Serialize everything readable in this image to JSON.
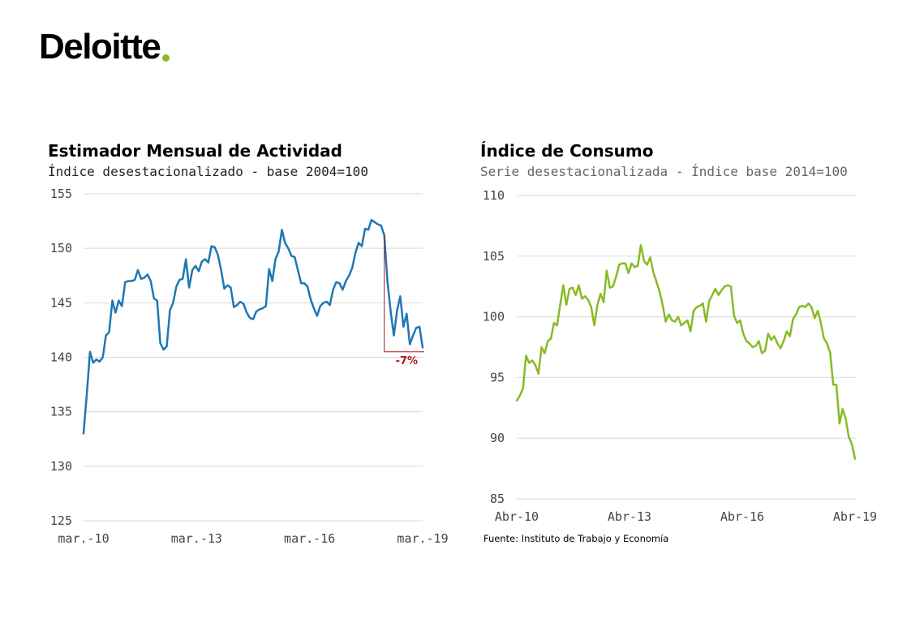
{
  "logo": {
    "text": "Deloitte",
    "dot_color": "#86bc25"
  },
  "source": "Fuente: Instituto de Trabajo y Economía",
  "chart_data": [
    {
      "type": "line",
      "title": "Estimador Mensual de Actividad",
      "subtitle": "Índice desestacionalizado - base 2004=100",
      "ylim": [
        125,
        155
      ],
      "yticks": [
        125,
        130,
        135,
        140,
        145,
        150,
        155
      ],
      "xticks": [
        "mar.-10",
        "mar.-13",
        "mar.-16",
        "mar.-19"
      ],
      "grid": true,
      "color": "#1f77b4",
      "series": [
        {
          "values": [
            133.0,
            136.5,
            140.5,
            139.5,
            139.8,
            139.6,
            140.0,
            142.0,
            142.3,
            145.2,
            144.1,
            145.2,
            144.7,
            146.9,
            147.0,
            147.0,
            147.1,
            148.0,
            147.2,
            147.3,
            147.6,
            147.0,
            145.4,
            145.2,
            141.3,
            140.7,
            141.0,
            144.3,
            145.0,
            146.5,
            147.1,
            147.2,
            149.0,
            146.4,
            148.0,
            148.4,
            147.9,
            148.8,
            149.0,
            148.7,
            150.2,
            150.1,
            149.4,
            148.0,
            146.3,
            146.6,
            146.4,
            144.6,
            144.8,
            145.1,
            144.9,
            144.1,
            143.6,
            143.5,
            144.2,
            144.4,
            144.5,
            144.7,
            148.1,
            147.0,
            149.0,
            149.7,
            151.7,
            150.5,
            150.0,
            149.3,
            149.2,
            148.0,
            146.8,
            146.8,
            146.5,
            145.3,
            144.5,
            143.8,
            144.7,
            145.0,
            145.1,
            144.8,
            146.2,
            146.9,
            146.8,
            146.2,
            147.0,
            147.5,
            148.2,
            149.6,
            150.5,
            150.2,
            151.8,
            151.7,
            152.6,
            152.4,
            152.2,
            152.1,
            151.2,
            147.0,
            144.2,
            142.0,
            144.3,
            145.6,
            142.8,
            144.0,
            141.2,
            142.0,
            142.7,
            142.8,
            140.9
          ]
        }
      ],
      "annotation": {
        "text": "-7%",
        "from": 151.2,
        "to": 140.5,
        "color": "#b3161e"
      }
    },
    {
      "type": "line",
      "title": "Índice de Consumo",
      "subtitle": "Serie desestacionalizada - Índice base 2014=100",
      "ylim": [
        85,
        110
      ],
      "yticks": [
        85,
        90,
        95,
        100,
        105,
        110
      ],
      "xticks": [
        "Abr-10",
        "Abr-13",
        "Abr-16",
        "Abr-19"
      ],
      "grid": true,
      "color": "#86bc25",
      "series": [
        {
          "values": [
            93.1,
            93.5,
            94.1,
            96.8,
            96.2,
            96.4,
            96.0,
            95.3,
            97.5,
            97.0,
            98.0,
            98.2,
            99.5,
            99.3,
            101.0,
            102.6,
            101.0,
            102.3,
            102.4,
            101.8,
            102.6,
            101.5,
            101.7,
            101.4,
            100.8,
            99.3,
            101.0,
            101.9,
            101.2,
            103.8,
            102.4,
            102.5,
            103.3,
            104.3,
            104.4,
            104.4,
            103.6,
            104.4,
            104.1,
            104.2,
            105.9,
            104.6,
            104.3,
            104.9,
            103.7,
            102.9,
            102.1,
            101.0,
            99.6,
            100.2,
            99.7,
            99.6,
            100.0,
            99.3,
            99.5,
            99.7,
            98.8,
            100.5,
            100.8,
            100.9,
            101.1,
            99.6,
            101.3,
            101.8,
            102.3,
            101.8,
            102.2,
            102.5,
            102.6,
            102.5,
            100.1,
            99.5,
            99.7,
            98.6,
            98.0,
            97.8,
            97.5,
            97.6,
            98.0,
            97.0,
            97.2,
            98.6,
            98.1,
            98.4,
            97.8,
            97.4,
            98.0,
            98.8,
            98.4,
            99.8,
            100.2,
            100.8,
            100.9,
            100.8,
            101.1,
            100.8,
            99.9,
            100.5,
            99.5,
            98.2,
            97.8,
            97.0,
            94.4,
            94.4,
            91.2,
            92.4,
            91.6,
            90.1,
            89.5,
            88.3
          ]
        }
      ]
    }
  ]
}
